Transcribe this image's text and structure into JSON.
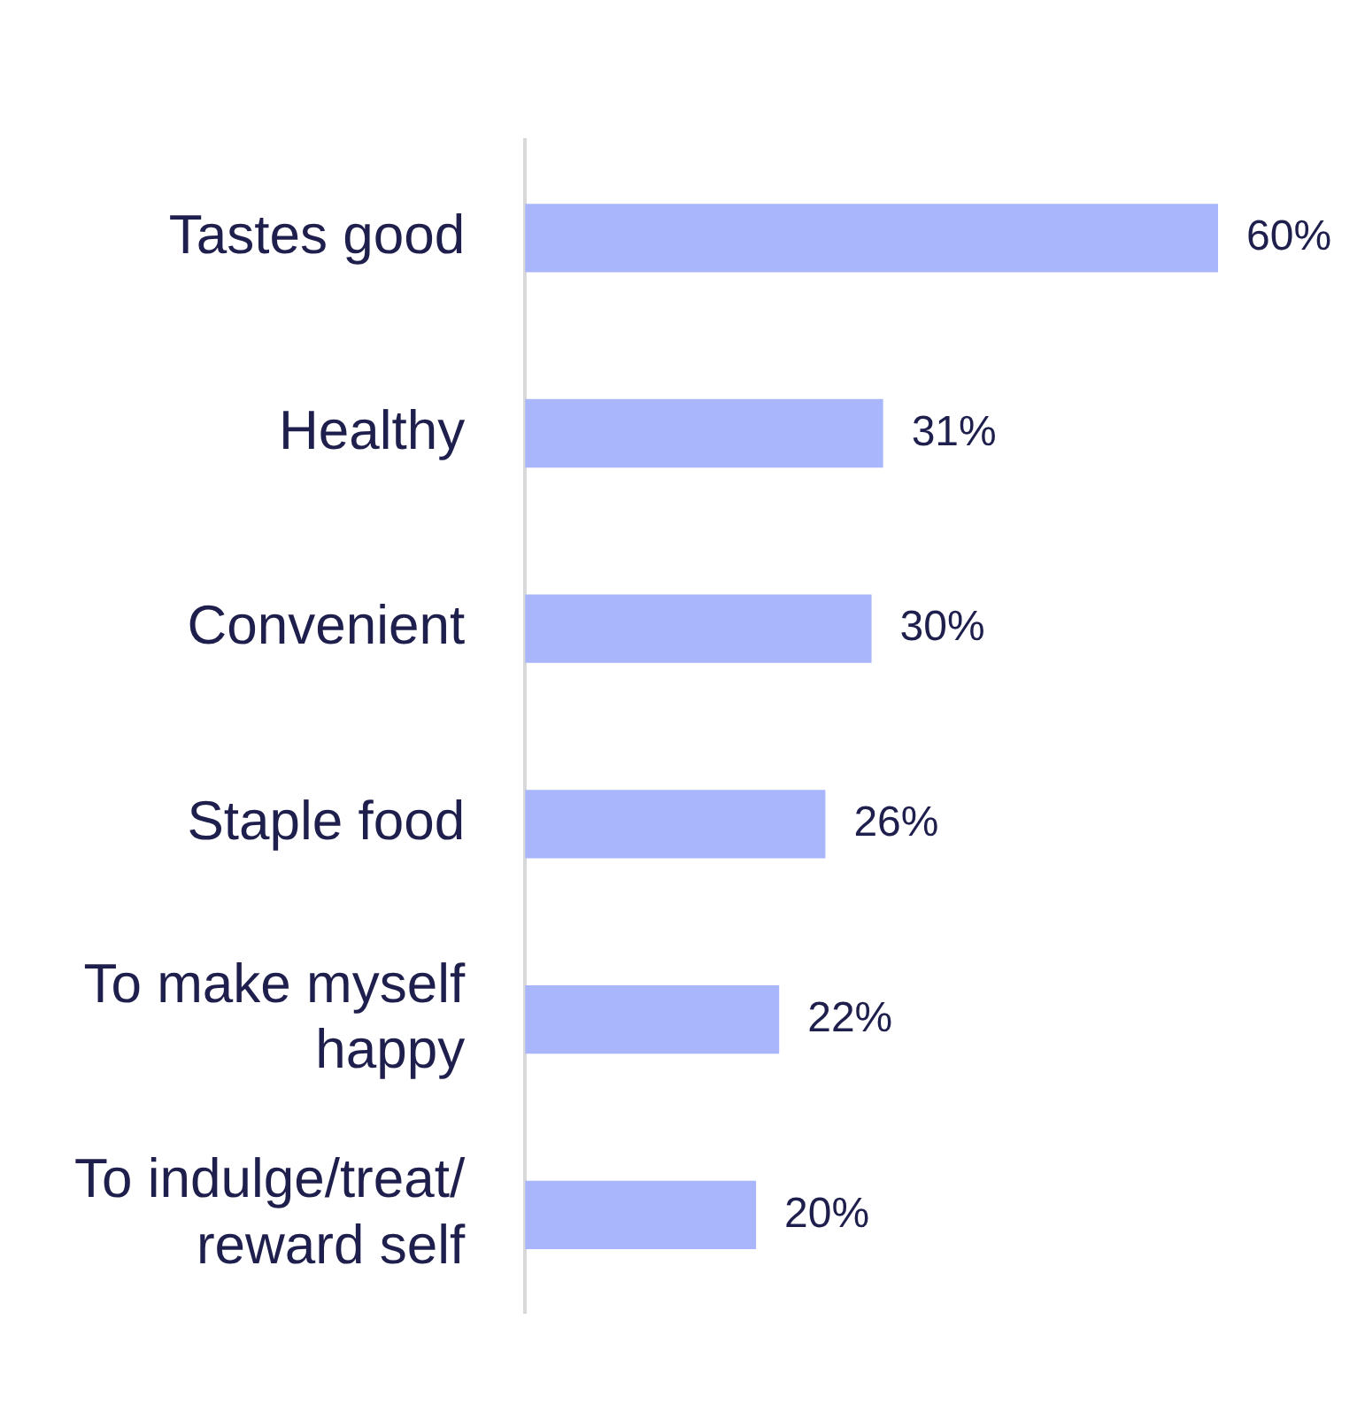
{
  "chart_data": {
    "type": "bar",
    "orientation": "horizontal",
    "categories": [
      "Tastes good",
      "Healthy",
      "Convenient",
      "Staple food",
      "To make myself happy",
      "To indulge/treat/ reward self"
    ],
    "values": [
      60,
      31,
      30,
      26,
      22,
      20
    ],
    "color": "#aab6fc",
    "value_labels": [
      "60%",
      "31%",
      "30%",
      "26%",
      "22%",
      "20%"
    ],
    "tick_labels": "y",
    "legend": false
  }
}
